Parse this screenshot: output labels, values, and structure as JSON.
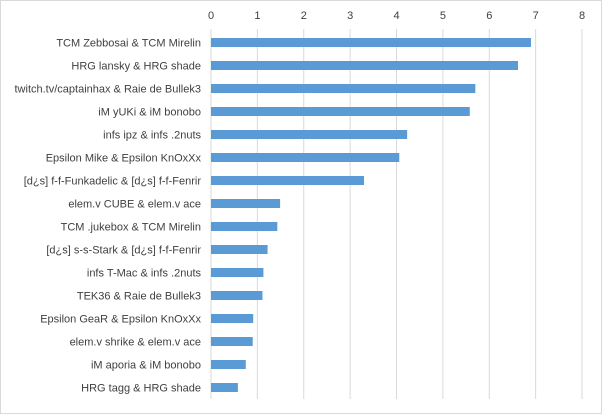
{
  "chart_data": {
    "type": "bar",
    "orientation": "horizontal",
    "title": "",
    "xlabel": "",
    "ylabel": "",
    "xlim": [
      0,
      8
    ],
    "x_ticks": [
      0,
      1,
      2,
      3,
      4,
      5,
      6,
      7,
      8
    ],
    "x_axis_position": "top",
    "grid": true,
    "legend": "none",
    "bar_color": "#5b9bd5",
    "categories": [
      "TCM Zebbosai & TCM Mirelin",
      "HRG lansky & HRG shade",
      "twitch.tv/captainhax & Raie de Bullek3",
      "iM yUKi & iM bonobo",
      "infs ipz & infs .2nuts",
      "Epsilon Mike & Epsilon KnOxXx",
      "[d¿s] f-f-Funkadelic & [d¿s] f-f-Fenrir",
      "elem.v CUBE & elem.v ace",
      "TCM .jukebox & TCM Mirelin",
      "[d¿s] s-s-Stark & [d¿s] f-f-Fenrir",
      "infs T-Mac & infs .2nuts",
      "TEK36 & Raie de Bullek3",
      "Epsilon GeaR & Epsilon KnOxXx",
      "elem.v shrike & elem.v ace",
      "iM aporia & iM bonobo",
      "HRG tagg & HRG shade"
    ],
    "values": [
      6.9,
      6.62,
      5.7,
      5.58,
      4.23,
      4.06,
      3.3,
      1.49,
      1.43,
      1.22,
      1.13,
      1.11,
      0.91,
      0.9,
      0.75,
      0.58
    ]
  }
}
